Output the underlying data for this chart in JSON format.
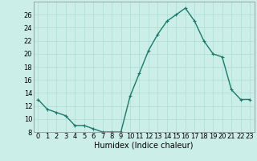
{
  "x": [
    0,
    1,
    2,
    3,
    4,
    5,
    6,
    7,
    8,
    9,
    10,
    11,
    12,
    13,
    14,
    15,
    16,
    17,
    18,
    19,
    20,
    21,
    22,
    23
  ],
  "y": [
    13,
    11.5,
    11,
    10.5,
    9,
    9,
    8.5,
    8,
    8,
    8,
    13.5,
    17,
    20.5,
    23,
    25,
    26,
    27,
    25,
    22,
    20,
    19.5,
    14.5,
    13,
    13
  ],
  "line_color": "#1a7a6a",
  "marker": "+",
  "marker_size": 3,
  "marker_edge_width": 0.8,
  "background_color": "#cceee8",
  "grid_color": "#aaddcc",
  "xlabel": "Humidex (Indice chaleur)",
  "ylim": [
    8,
    28
  ],
  "xlim": [
    -0.5,
    23.5
  ],
  "yticks": [
    8,
    10,
    12,
    14,
    16,
    18,
    20,
    22,
    24,
    26
  ],
  "xtick_labels": [
    "0",
    "1",
    "2",
    "3",
    "4",
    "5",
    "6",
    "7",
    "8",
    "9",
    "10",
    "11",
    "12",
    "13",
    "14",
    "15",
    "16",
    "17",
    "18",
    "19",
    "20",
    "21",
    "22",
    "23"
  ],
  "xlabel_fontsize": 7,
  "tick_fontsize": 6,
  "line_width": 1.0
}
